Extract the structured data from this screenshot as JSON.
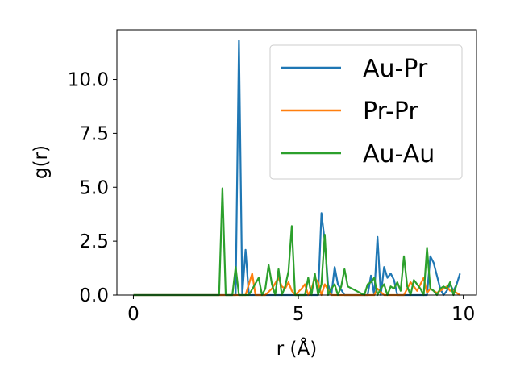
{
  "chart_data": {
    "type": "line",
    "xlabel": "r (Å)",
    "ylabel": "g(r)",
    "xlim": [
      -0.5,
      10.4
    ],
    "ylim": [
      0,
      12.3
    ],
    "xticks": [
      0,
      5,
      10
    ],
    "xtick_labels": [
      "0",
      "5",
      "10"
    ],
    "yticks": [
      0,
      2.5,
      5,
      7.5,
      10
    ],
    "ytick_labels": [
      "0.0",
      "2.5",
      "5.0",
      "7.5",
      "10.0"
    ],
    "grid": false,
    "legend_position": "top-right",
    "series": [
      {
        "name": "Au-Pr",
        "color": "#1f77b4",
        "x": [
          0,
          3.0,
          3.1,
          3.2,
          3.3,
          3.4,
          3.5,
          3.6,
          3.8,
          4.0,
          5.0,
          5.5,
          5.6,
          5.7,
          5.8,
          5.9,
          6.0,
          6.1,
          6.2,
          6.4,
          7.0,
          7.1,
          7.2,
          7.3,
          7.4,
          7.5,
          7.6,
          7.7,
          7.8,
          7.9,
          8.0,
          8.2,
          8.6,
          8.8,
          8.9,
          9.0,
          9.1,
          9.2,
          9.3,
          9.4,
          9.5,
          9.6,
          9.7,
          9.8,
          9.9
        ],
        "y": [
          0,
          0,
          0,
          11.8,
          0,
          2.1,
          0,
          0,
          0,
          0,
          0,
          0,
          0,
          3.8,
          2.5,
          0.5,
          0,
          1.3,
          0.5,
          0,
          0,
          0,
          0.9,
          0,
          2.7,
          0,
          1.3,
          0.8,
          1.0,
          0.7,
          0,
          0,
          0,
          0,
          0,
          1.8,
          1.5,
          0.9,
          0.3,
          0,
          0.2,
          0.5,
          0.2,
          0.5,
          1.0
        ]
      },
      {
        "name": "Pr-Pr",
        "color": "#ff7f0e",
        "x": [
          0,
          3.4,
          3.6,
          3.7,
          4.0,
          4.2,
          4.4,
          4.5,
          4.6,
          4.7,
          4.8,
          4.9,
          5.1,
          5.2,
          5.3,
          5.4,
          5.5,
          5.6,
          5.7,
          5.8,
          6.0,
          7.0,
          7.3,
          7.4,
          7.6,
          7.8,
          8.2,
          8.4,
          8.5,
          8.6,
          8.8,
          8.9,
          9.0,
          9.2,
          9.5,
          9.6,
          9.7,
          9.8,
          9.9
        ],
        "y": [
          0,
          0,
          1.0,
          0,
          0,
          0.3,
          0.8,
          0.4,
          0.3,
          0.6,
          0.2,
          0,
          0.3,
          0.5,
          0,
          0.3,
          0.8,
          0.6,
          0,
          0.5,
          0,
          0,
          0,
          0.3,
          0,
          0,
          0,
          0.6,
          0.4,
          0.2,
          0.8,
          0.1,
          0.3,
          0.1,
          0.4,
          0.2,
          0.2,
          0.1,
          0
        ]
      },
      {
        "name": "Au-Au",
        "color": "#2ca02c",
        "x": [
          0,
          2.6,
          2.7,
          2.8,
          3.0,
          3.1,
          3.2,
          3.5,
          3.8,
          3.9,
          4.0,
          4.1,
          4.2,
          4.3,
          4.4,
          4.5,
          4.6,
          4.7,
          4.8,
          4.9,
          5.2,
          5.3,
          5.4,
          5.5,
          5.6,
          5.7,
          5.8,
          5.9,
          6.0,
          6.1,
          6.2,
          6.3,
          6.4,
          6.5,
          7.0,
          7.1,
          7.2,
          7.3,
          7.4,
          7.5,
          7.6,
          7.7,
          7.8,
          7.9,
          8.0,
          8.1,
          8.2,
          8.3,
          8.4,
          8.5,
          8.6,
          8.7,
          8.8,
          8.9,
          9.0,
          9.1,
          9.2,
          9.3,
          9.4,
          9.5,
          9.6,
          9.7,
          9.8
        ],
        "y": [
          0,
          0,
          4.95,
          0,
          0,
          1.3,
          0,
          0,
          0.8,
          0,
          0.3,
          1.4,
          0.5,
          0,
          1.2,
          0,
          0.4,
          1.1,
          3.2,
          0,
          0,
          0.8,
          0,
          1.0,
          0,
          0.5,
          2.8,
          0,
          0.3,
          0.5,
          0,
          0.4,
          1.2,
          0.4,
          0,
          0.5,
          0.6,
          0.8,
          0,
          0.3,
          0.5,
          0,
          0.4,
          0.3,
          0.6,
          0.2,
          1.8,
          0.4,
          0,
          0.7,
          0.5,
          0.3,
          0,
          2.2,
          0.3,
          0.2,
          0,
          0.3,
          0.4,
          0.3,
          0.6,
          0,
          0.5
        ]
      }
    ]
  }
}
